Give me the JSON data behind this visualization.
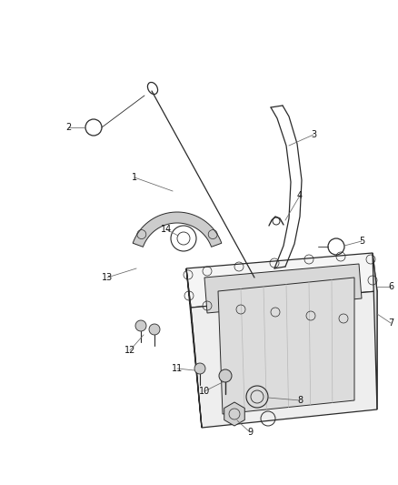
{
  "background_color": "#ffffff",
  "fig_width": 4.38,
  "fig_height": 5.33,
  "dpi": 100,
  "line_color": "#2a2a2a",
  "label_font_size": 7.0,
  "leader_color": "#666666"
}
